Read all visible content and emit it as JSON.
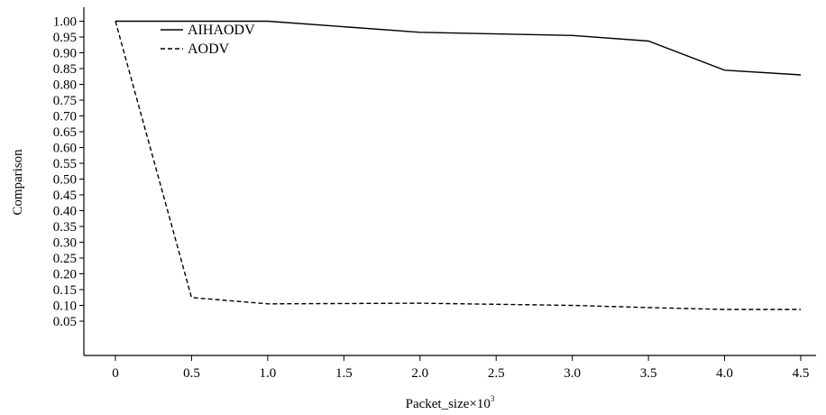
{
  "chart_data": {
    "type": "line",
    "title": "",
    "xlabel": "Packet_size×10",
    "xlabel_superscript": "3",
    "ylabel": "Comparison",
    "xlim": [
      -0.2,
      4.6
    ],
    "ylim": [
      0.04,
      1.04
    ],
    "x_ticks": [
      "0",
      "0.5",
      "1.0",
      "1.5",
      "2.0",
      "2.5",
      "3.0",
      "3.5",
      "4.0",
      "4.5"
    ],
    "y_ticks": [
      "0.05",
      "0.10",
      "0.15",
      "0.20",
      "0.25",
      "0.30",
      "0.35",
      "0.40",
      "0.45",
      "0.50",
      "0.55",
      "0.60",
      "0.65",
      "0.70",
      "0.75",
      "0.80",
      "0.85",
      "0.90",
      "0.95",
      "1.00"
    ],
    "grid": false,
    "legend_position": "top-left",
    "series": [
      {
        "name": "AIHAODV",
        "style": "solid",
        "color": "#000000",
        "x": [
          0,
          0.5,
          1.0,
          2.0,
          3.0,
          3.5,
          4.0,
          4.5
        ],
        "y": [
          1.0,
          1.0,
          1.0,
          0.965,
          0.955,
          0.937,
          0.845,
          0.83
        ]
      },
      {
        "name": "AODV",
        "style": "dashed",
        "color": "#000000",
        "x": [
          0,
          0.5,
          1.0,
          2.0,
          3.0,
          3.5,
          4.0,
          4.5
        ],
        "y": [
          1.0,
          0.125,
          0.105,
          0.107,
          0.1,
          0.093,
          0.087,
          0.087
        ]
      }
    ]
  }
}
